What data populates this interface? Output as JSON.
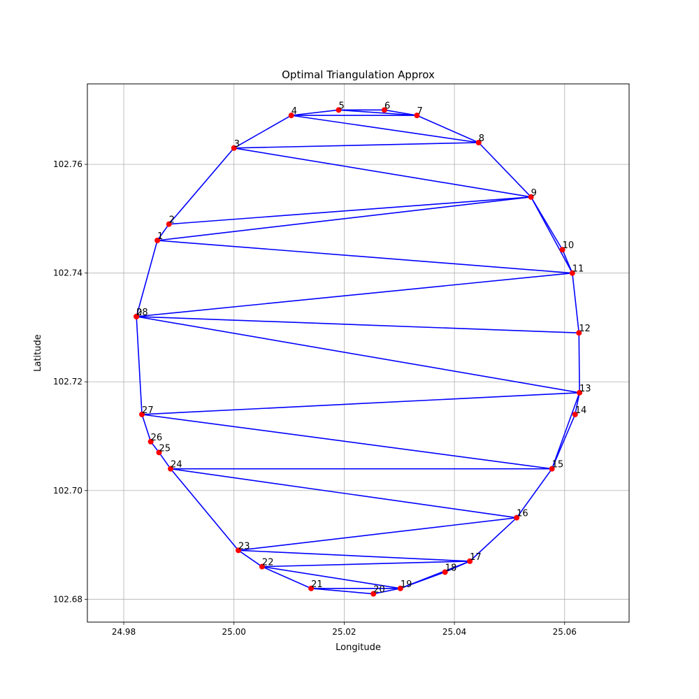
{
  "chart_data": {
    "type": "line",
    "title": "Optimal Triangulation Approx",
    "xlabel": "Longitude",
    "ylabel": "Latitude",
    "xlim": [
      24.9734,
      25.0717
    ],
    "ylim": [
      102.6758,
      102.7748
    ],
    "xticks": [
      24.98,
      25.0,
      25.02,
      25.04,
      25.06
    ],
    "xtick_labels": [
      "24.98",
      "25.00",
      "25.02",
      "25.04",
      "25.06"
    ],
    "yticks": [
      102.68,
      102.7,
      102.72,
      102.74,
      102.76
    ],
    "ytick_labels": [
      "102.68",
      "102.70",
      "102.72",
      "102.74",
      "102.76"
    ],
    "grid": true,
    "point_color": "#ff0000",
    "line_color": "#0000ff",
    "points": [
      {
        "label": "0",
        "x": 24.9823,
        "y": 102.732
      },
      {
        "label": "1",
        "x": 24.9861,
        "y": 102.746
      },
      {
        "label": "2",
        "x": 24.9882,
        "y": 102.749
      },
      {
        "label": "3",
        "x": 25.0,
        "y": 102.763
      },
      {
        "label": "4",
        "x": 25.0104,
        "y": 102.769
      },
      {
        "label": "5",
        "x": 25.019,
        "y": 102.77
      },
      {
        "label": "6",
        "x": 25.0273,
        "y": 102.77
      },
      {
        "label": "7",
        "x": 25.0332,
        "y": 102.769
      },
      {
        "label": "8",
        "x": 25.0444,
        "y": 102.764
      },
      {
        "label": "9",
        "x": 25.0539,
        "y": 102.754
      },
      {
        "label": "10",
        "x": 25.0596,
        "y": 102.7443
      },
      {
        "label": "11",
        "x": 25.0614,
        "y": 102.74
      },
      {
        "label": "12",
        "x": 25.0626,
        "y": 102.729
      },
      {
        "label": "13",
        "x": 25.0627,
        "y": 102.718
      },
      {
        "label": "14",
        "x": 25.0619,
        "y": 102.714
      },
      {
        "label": "15",
        "x": 25.0577,
        "y": 102.704
      },
      {
        "label": "16",
        "x": 25.0513,
        "y": 102.695
      },
      {
        "label": "17",
        "x": 25.0428,
        "y": 102.687
      },
      {
        "label": "18",
        "x": 25.0383,
        "y": 102.685
      },
      {
        "label": "19",
        "x": 25.0302,
        "y": 102.682
      },
      {
        "label": "20",
        "x": 25.0253,
        "y": 102.681
      },
      {
        "label": "21",
        "x": 25.014,
        "y": 102.682
      },
      {
        "label": "22",
        "x": 25.0051,
        "y": 102.686
      },
      {
        "label": "23",
        "x": 25.0008,
        "y": 102.689
      },
      {
        "label": "24",
        "x": 24.9885,
        "y": 102.704
      },
      {
        "label": "25",
        "x": 24.9864,
        "y": 102.707
      },
      {
        "label": "26",
        "x": 24.9849,
        "y": 102.709
      },
      {
        "label": "27",
        "x": 24.9833,
        "y": 102.714
      },
      {
        "label": "28",
        "x": 24.9823,
        "y": 102.732
      }
    ],
    "edges": [
      [
        0,
        1
      ],
      [
        1,
        2
      ],
      [
        2,
        3
      ],
      [
        3,
        4
      ],
      [
        4,
        5
      ],
      [
        5,
        6
      ],
      [
        6,
        7
      ],
      [
        7,
        8
      ],
      [
        8,
        9
      ],
      [
        9,
        10
      ],
      [
        10,
        11
      ],
      [
        11,
        12
      ],
      [
        12,
        13
      ],
      [
        13,
        14
      ],
      [
        14,
        15
      ],
      [
        15,
        16
      ],
      [
        16,
        17
      ],
      [
        17,
        18
      ],
      [
        18,
        19
      ],
      [
        19,
        20
      ],
      [
        20,
        21
      ],
      [
        21,
        22
      ],
      [
        22,
        23
      ],
      [
        23,
        24
      ],
      [
        24,
        25
      ],
      [
        25,
        26
      ],
      [
        26,
        27
      ],
      [
        27,
        28
      ],
      [
        28,
        0
      ],
      [
        4,
        7
      ],
      [
        5,
        7
      ],
      [
        4,
        8
      ],
      [
        3,
        8
      ],
      [
        3,
        9
      ],
      [
        2,
        9
      ],
      [
        1,
        9
      ],
      [
        9,
        11
      ],
      [
        1,
        11
      ],
      [
        0,
        11
      ],
      [
        0,
        12
      ],
      [
        0,
        13
      ],
      [
        27,
        13
      ],
      [
        27,
        15
      ],
      [
        13,
        15
      ],
      [
        24,
        15
      ],
      [
        24,
        16
      ],
      [
        23,
        16
      ],
      [
        23,
        17
      ],
      [
        22,
        17
      ],
      [
        22,
        19
      ],
      [
        21,
        19
      ],
      [
        17,
        19
      ]
    ]
  }
}
